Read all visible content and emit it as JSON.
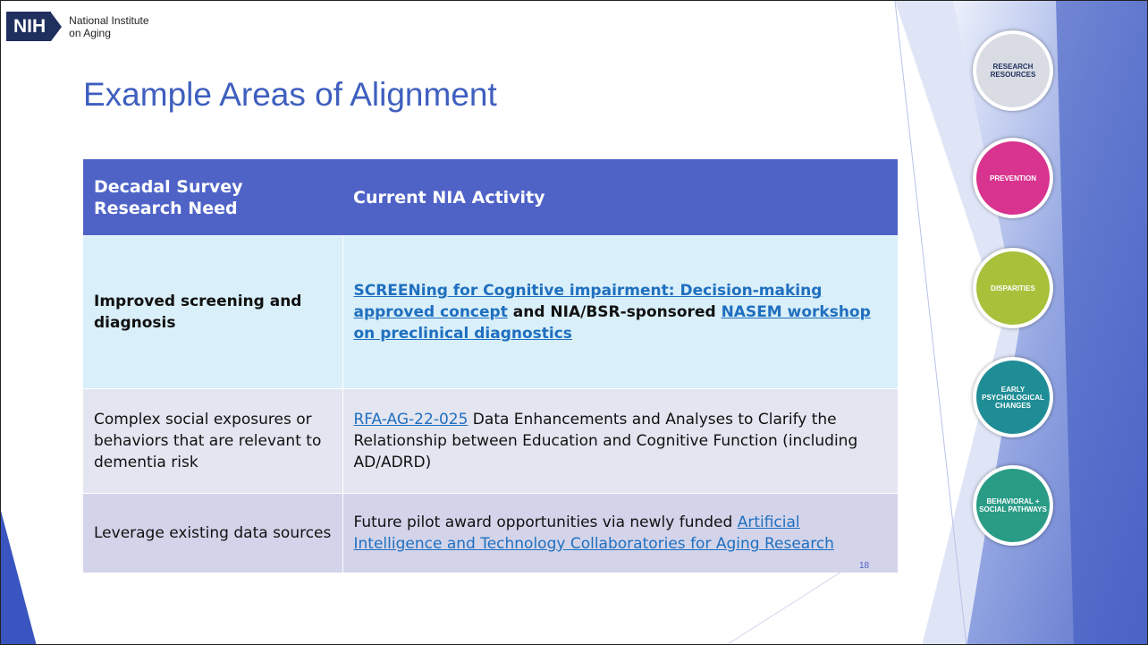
{
  "header": {
    "logo": "NIH",
    "org": [
      "National Institute",
      "on Aging"
    ]
  },
  "title": "Example Areas of Alignment",
  "table": {
    "columns": [
      "Decadal Survey Research Need",
      "Current NIA Activity"
    ],
    "rows": [
      {
        "need": "Improved screening and diagnosis",
        "need_bold": true,
        "activity": [
          {
            "text": "SCREENing for Cognitive impairment: Decision-making approved concept",
            "link": true,
            "bold": true
          },
          {
            "text": " and NIA/BSR-sponsored ",
            "link": false,
            "bold": true
          },
          {
            "text": "NASEM workshop on preclinical diagnostics",
            "link": true,
            "bold": true
          }
        ]
      },
      {
        "need": "Complex social exposures or behaviors that are relevant to dementia risk",
        "need_bold": false,
        "activity": [
          {
            "text": "RFA-AG-22-025",
            "link": true,
            "bold": false
          },
          {
            "text": " Data Enhancements and Analyses to Clarify the Relationship between Education and Cognitive Function (including AD/ADRD)",
            "link": false,
            "bold": false
          }
        ]
      },
      {
        "need": "Leverage existing data sources",
        "need_bold": false,
        "activity": [
          {
            "text": "Future pilot award opportunities via newly funded ",
            "link": false,
            "bold": false
          },
          {
            "text": "Artificial Intelligence and Technology Collaboratories for Aging Research",
            "link": true,
            "bold": false
          }
        ]
      }
    ]
  },
  "page_number": "18",
  "icons": [
    {
      "label": "RESEARCH RESOURCES",
      "color": "#d9dde3"
    },
    {
      "label": "PREVENTION",
      "color": "#d8338f"
    },
    {
      "label": "DISPARITIES",
      "color": "#a7c13a"
    },
    {
      "label": "EARLY PSYCHOLOGICAL CHANGES",
      "color": "#1f8d96"
    },
    {
      "label": "BEHAVIORAL + SOCIAL PATHWAYS",
      "color": "#2a9c86"
    }
  ]
}
